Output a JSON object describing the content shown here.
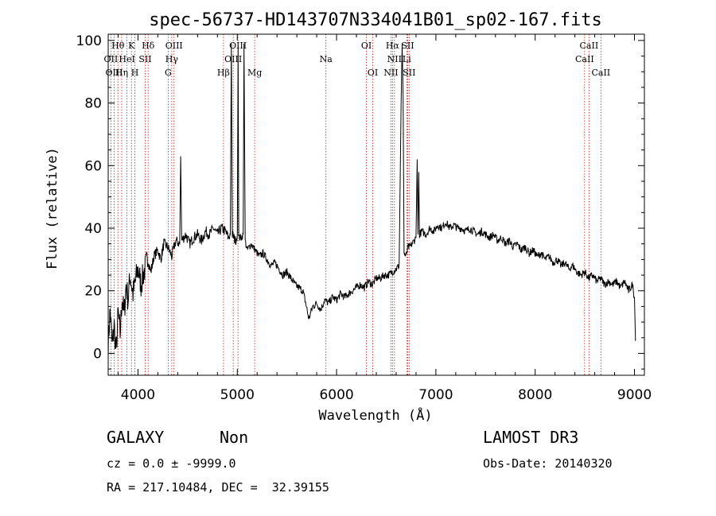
{
  "chart_data": {
    "type": "line",
    "title": "spec-56737-HD143707N334041B01_sp02-167.fits",
    "xlabel": "Wavelength (Å)",
    "ylabel": "Flux (relative)",
    "xlim": [
      3700,
      9100
    ],
    "ylim": [
      -7,
      102
    ],
    "xticks": [
      4000,
      5000,
      6000,
      7000,
      8000,
      9000
    ],
    "yticks": [
      0,
      20,
      40,
      60,
      80,
      100
    ],
    "grid": false,
    "series": [
      {
        "points": [
          [
            3700,
            3
          ],
          [
            3720,
            14
          ],
          [
            3740,
            2
          ],
          [
            3760,
            9
          ],
          [
            3780,
            0
          ],
          [
            3800,
            13
          ],
          [
            3820,
            6
          ],
          [
            3840,
            18
          ],
          [
            3860,
            12
          ],
          [
            3880,
            22
          ],
          [
            3900,
            17
          ],
          [
            3920,
            25
          ],
          [
            3950,
            19
          ],
          [
            3980,
            24
          ],
          [
            4000,
            27
          ],
          [
            4030,
            22
          ],
          [
            4060,
            26
          ],
          [
            4100,
            30
          ],
          [
            4130,
            26
          ],
          [
            4160,
            31
          ],
          [
            4200,
            33
          ],
          [
            4230,
            30
          ],
          [
            4260,
            35
          ],
          [
            4300,
            34
          ],
          [
            4340,
            31
          ],
          [
            4380,
            36
          ],
          [
            4420,
            35
          ],
          [
            4430,
            63
          ],
          [
            4440,
            36
          ],
          [
            4480,
            38
          ],
          [
            4520,
            35
          ],
          [
            4560,
            37
          ],
          [
            4600,
            38
          ],
          [
            4640,
            36
          ],
          [
            4680,
            39
          ],
          [
            4720,
            38
          ],
          [
            4760,
            40
          ],
          [
            4800,
            38
          ],
          [
            4840,
            40
          ],
          [
            4880,
            39
          ],
          [
            4910,
            37
          ],
          [
            4930,
            38
          ],
          [
            4940,
            99
          ],
          [
            4950,
            38
          ],
          [
            4980,
            36
          ],
          [
            5000,
            38
          ],
          [
            5008,
            98
          ],
          [
            5015,
            37
          ],
          [
            5040,
            37
          ],
          [
            5060,
            38
          ],
          [
            5068,
            99
          ],
          [
            5080,
            36
          ],
          [
            5100,
            33
          ],
          [
            5140,
            35
          ],
          [
            5180,
            33
          ],
          [
            5220,
            31
          ],
          [
            5260,
            32
          ],
          [
            5300,
            30
          ],
          [
            5340,
            28
          ],
          [
            5380,
            29
          ],
          [
            5420,
            27
          ],
          [
            5460,
            25
          ],
          [
            5500,
            26
          ],
          [
            5540,
            24
          ],
          [
            5580,
            22
          ],
          [
            5620,
            21
          ],
          [
            5660,
            20
          ],
          [
            5690,
            16
          ],
          [
            5720,
            11
          ],
          [
            5740,
            13
          ],
          [
            5760,
            15
          ],
          [
            5800,
            16
          ],
          [
            5840,
            14
          ],
          [
            5880,
            17
          ],
          [
            5920,
            16
          ],
          [
            5960,
            18
          ],
          [
            6000,
            17
          ],
          [
            6040,
            19
          ],
          [
            6080,
            18
          ],
          [
            6120,
            19
          ],
          [
            6160,
            20
          ],
          [
            6200,
            21
          ],
          [
            6240,
            22
          ],
          [
            6280,
            21
          ],
          [
            6320,
            23
          ],
          [
            6360,
            22
          ],
          [
            6400,
            24
          ],
          [
            6440,
            24
          ],
          [
            6480,
            25
          ],
          [
            6520,
            25
          ],
          [
            6560,
            26
          ],
          [
            6600,
            27
          ],
          [
            6630,
            28
          ],
          [
            6650,
            80
          ],
          [
            6660,
            99
          ],
          [
            6670,
            82
          ],
          [
            6680,
            32
          ],
          [
            6700,
            31
          ],
          [
            6720,
            34
          ],
          [
            6740,
            34
          ],
          [
            6760,
            35
          ],
          [
            6780,
            36
          ],
          [
            6800,
            37
          ],
          [
            6812,
            62
          ],
          [
            6820,
            38
          ],
          [
            6828,
            58
          ],
          [
            6835,
            38
          ],
          [
            6860,
            39
          ],
          [
            6900,
            38
          ],
          [
            6940,
            40
          ],
          [
            6980,
            39
          ],
          [
            7020,
            41
          ],
          [
            7060,
            40
          ],
          [
            7100,
            42
          ],
          [
            7140,
            40
          ],
          [
            7180,
            41
          ],
          [
            7220,
            40
          ],
          [
            7260,
            40
          ],
          [
            7300,
            39
          ],
          [
            7340,
            40
          ],
          [
            7380,
            39
          ],
          [
            7420,
            38
          ],
          [
            7460,
            39
          ],
          [
            7500,
            38
          ],
          [
            7540,
            37
          ],
          [
            7580,
            38
          ],
          [
            7620,
            36
          ],
          [
            7660,
            37
          ],
          [
            7700,
            35
          ],
          [
            7740,
            36
          ],
          [
            7780,
            34
          ],
          [
            7820,
            35
          ],
          [
            7860,
            33
          ],
          [
            7900,
            34
          ],
          [
            7940,
            32
          ],
          [
            7980,
            33
          ],
          [
            8020,
            31
          ],
          [
            8060,
            32
          ],
          [
            8100,
            30
          ],
          [
            8140,
            31
          ],
          [
            8180,
            29
          ],
          [
            8220,
            30
          ],
          [
            8260,
            28
          ],
          [
            8300,
            29
          ],
          [
            8340,
            27
          ],
          [
            8380,
            28
          ],
          [
            8420,
            26
          ],
          [
            8460,
            25
          ],
          [
            8500,
            26
          ],
          [
            8540,
            24
          ],
          [
            8580,
            25
          ],
          [
            8620,
            23
          ],
          [
            8660,
            24
          ],
          [
            8700,
            22
          ],
          [
            8740,
            23
          ],
          [
            8780,
            22
          ],
          [
            8820,
            23
          ],
          [
            8860,
            21
          ],
          [
            8900,
            23
          ],
          [
            8940,
            20
          ],
          [
            8980,
            22
          ],
          [
            9000,
            18
          ],
          [
            9010,
            4
          ]
        ]
      }
    ],
    "lines": [
      {
        "label": "OII",
        "wave": 3727,
        "row": 2
      },
      {
        "label": "OIII",
        "wave": 3760,
        "row": 3
      },
      {
        "label": "Hθ",
        "wave": 3798,
        "row": 1
      },
      {
        "label": "Hη",
        "wave": 3836,
        "row": 3
      },
      {
        "label": "K",
        "wave": 3934,
        "row": 1
      },
      {
        "label": "H",
        "wave": 3969,
        "row": 3
      },
      {
        "label": "HeI",
        "wave": 3889,
        "row": 2
      },
      {
        "label": "SII",
        "wave": 4072,
        "row": 2
      },
      {
        "label": "Hδ",
        "wave": 4102,
        "row": 1
      },
      {
        "label": "OIII",
        "wave": 4363,
        "row": 1
      },
      {
        "label": "Hγ",
        "wave": 4340,
        "row": 2
      },
      {
        "label": "G",
        "wave": 4304,
        "row": 3
      },
      {
        "label": "Hβ",
        "wave": 4861,
        "row": 3
      },
      {
        "label": "OIII",
        "wave": 5007,
        "row": 1
      },
      {
        "label": "OIII",
        "wave": 4959,
        "row": 2
      },
      {
        "label": "Mg",
        "wave": 5175,
        "row": 3
      },
      {
        "label": "Na",
        "wave": 5893,
        "row": 2
      },
      {
        "label": "OI",
        "wave": 6300,
        "row": 1
      },
      {
        "label": "OI",
        "wave": 6364,
        "row": 3
      },
      {
        "label": "Hα",
        "wave": 6563,
        "row": 1
      },
      {
        "label": "SII",
        "wave": 6716,
        "row": 1
      },
      {
        "label": "NII",
        "wave": 6583,
        "row": 2
      },
      {
        "label": "NII",
        "wave": 6548,
        "row": 3
      },
      {
        "label": "SII",
        "wave": 6731,
        "row": 3
      },
      {
        "label": "Li",
        "wave": 6707,
        "row": 2
      },
      {
        "label": "CaII",
        "wave": 8542,
        "row": 1
      },
      {
        "label": "CaII",
        "wave": 8498,
        "row": 2
      },
      {
        "label": "CaII",
        "wave": 8662,
        "row": 3
      }
    ]
  },
  "info": {
    "class": "GALAXY",
    "subclass": "Non",
    "survey": "LAMOST DR3",
    "cz": "cz = 0.0 ± -9999.0",
    "obs_date": "Obs-Date: 20140320",
    "coords": "RA = 217.10484, DEC =  32.39155"
  },
  "colors": {
    "spectrum": "#000000",
    "line_marker": "#b22222",
    "axes": "#000000"
  }
}
